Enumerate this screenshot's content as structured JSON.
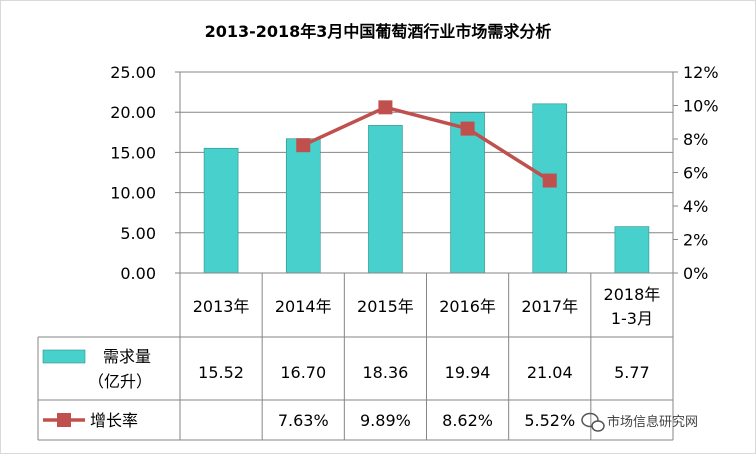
{
  "chart_data": {
    "type": "bar",
    "title": "2013-2018年3月中国葡萄酒行业市场需求分析",
    "categories": [
      "2013年",
      "2014年",
      "2015年",
      "2016年",
      "2017年",
      "2018年\n1-3月"
    ],
    "series": [
      {
        "name": "需求量（亿升）",
        "type": "bar",
        "axis": "left",
        "color": "#48D1CC",
        "values": [
          15.52,
          16.7,
          18.36,
          19.94,
          21.04,
          5.77
        ],
        "labels": [
          "15.52",
          "16.70",
          "18.36",
          "19.94",
          "21.04",
          "5.77"
        ]
      },
      {
        "name": "增长率",
        "type": "line",
        "axis": "right",
        "color": "#C0504D",
        "values": [
          null,
          7.63,
          9.89,
          8.62,
          5.52,
          null
        ],
        "labels": [
          "",
          "7.63%",
          "9.89%",
          "8.62%",
          "5.52%",
          ""
        ]
      }
    ],
    "y_left": {
      "min": 0,
      "max": 25,
      "step": 5,
      "ticks": [
        "0.00",
        "5.00",
        "10.00",
        "15.00",
        "20.00",
        "25.00"
      ]
    },
    "y_right": {
      "min": 0,
      "max": 12,
      "step": 2,
      "ticks": [
        "0%",
        "2%",
        "4%",
        "6%",
        "8%",
        "10%",
        "12%"
      ]
    },
    "grid": true,
    "legend": "data-table"
  },
  "table": {
    "row1_label_line1": "需求量",
    "row1_label_line2": "（亿升）",
    "row2_label": "增长率"
  },
  "watermark": {
    "text": "市场信息研究网",
    "icon": "wechat-icon"
  }
}
